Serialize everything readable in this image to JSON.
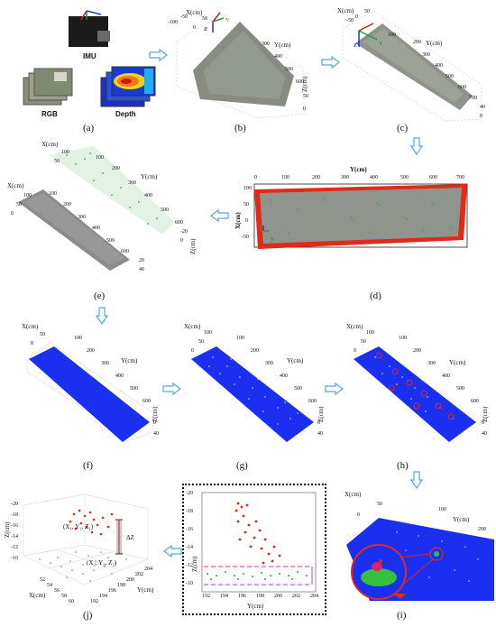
{
  "panels": {
    "a": {
      "caption": "(a)",
      "imu_label": "IMU",
      "rgb_label": "RGB",
      "depth_label": "Depth"
    },
    "b": {
      "caption": "(b)",
      "x_label": "X(cm)",
      "y_label": "Y(cm)",
      "z_label": "Z(cm)",
      "x_ticks": [
        "-100",
        "-50",
        "0",
        "50"
      ],
      "y_ticks": [
        "300",
        "400",
        "500",
        "600"
      ],
      "z_ticks": [
        "50",
        "0"
      ],
      "axis_y": "Y",
      "axis_z": "Z"
    },
    "c": {
      "caption": "(c)",
      "x_label": "X(cm)",
      "y_label": "Y(cm)",
      "z_label": "Z(cm)",
      "x_ticks": [
        "-50",
        "0",
        "50"
      ],
      "y_ticks": [
        "100",
        "200",
        "300",
        "400",
        "500",
        "600",
        "700"
      ],
      "z_ticks": [
        "40",
        "0"
      ],
      "axis_y": "Y",
      "axis_z": "Z"
    },
    "d": {
      "caption": "(d)",
      "x_label": "X(cm)",
      "y_label": "Y(cm)",
      "x_ticks": [
        "100",
        "50",
        "0",
        "-50"
      ],
      "y_ticks": [
        "0",
        "100",
        "200",
        "300",
        "400",
        "500",
        "600",
        "700"
      ],
      "axis_y": "y"
    },
    "e": {
      "caption": "(e)",
      "x_label": "X(cm)",
      "y_label": "Y(cm)",
      "z_label": "Z(cm)",
      "upper_x_ticks": [
        "100",
        "50"
      ],
      "upper_y_ticks": [
        "100",
        "200",
        "300",
        "400",
        "500",
        "600"
      ],
      "lower_x_ticks": [
        "100",
        "50",
        "0"
      ],
      "lower_y_ticks": [
        "100",
        "200",
        "300",
        "400",
        "500",
        "600"
      ],
      "z_ticks": [
        "-20",
        "0",
        "20",
        "40"
      ]
    },
    "f": {
      "caption": "(f)",
      "x_label": "X(cm)",
      "y_label": "Y(cm)",
      "z_label": "Z(cm)",
      "x_ticks": [
        "50",
        "0"
      ],
      "y_ticks": [
        "100",
        "200",
        "300",
        "400",
        "500",
        "600"
      ],
      "z_ticks": [
        "0",
        "40"
      ]
    },
    "g": {
      "caption": "(g)",
      "x_label": "X(cm)",
      "y_label": "Y(cm)",
      "z_label": "Z(cm)",
      "x_ticks": [
        "100",
        "50",
        "0"
      ],
      "y_ticks": [
        "100",
        "200",
        "300",
        "400",
        "500",
        "600"
      ],
      "z_ticks": [
        "0",
        "40"
      ]
    },
    "h": {
      "caption": "(h)",
      "x_label": "X(cm)",
      "y_label": "Y(cm)",
      "z_label": "Z(cm)",
      "x_ticks": [
        "100",
        "50",
        "0"
      ],
      "y_ticks": [
        "100",
        "200",
        "300",
        "400",
        "500",
        "600"
      ],
      "z_ticks": [
        "0",
        "40"
      ]
    },
    "i": {
      "caption": "(i)",
      "x_label": "X(cm)",
      "y_label": "Y(cm)",
      "x_ticks": [
        "50",
        "0"
      ],
      "y_ticks": [
        "100",
        "200"
      ]
    },
    "j": {
      "caption": "(j)",
      "x_label": "X(cm)",
      "y_label": "Y(cm)",
      "z_label": "Z(cm)",
      "x_ticks": [
        "52",
        "54",
        "56",
        "58",
        "60"
      ],
      "y_ticks": [
        "192",
        "194",
        "196",
        "198",
        "200",
        "202",
        "204"
      ],
      "z_ticks": [
        "-20",
        "-18",
        "-16",
        "-14",
        "-12",
        "-10"
      ],
      "point_label": "(X₁, Y₁, Z₁)",
      "point_label2": "(X₂, Y₂, Z₂)",
      "delta_label": "ΔZ"
    },
    "k": {
      "x_label": "Y(cm)",
      "y_label": "Z(cm)",
      "x_ticks": [
        "192",
        "194",
        "196",
        "198",
        "200",
        "202",
        "204"
      ],
      "y_ticks": [
        "-20",
        "-18",
        "-16",
        "-14",
        "-12",
        "-10"
      ]
    }
  },
  "colors": {
    "arrow": "#5aa7d8",
    "blue_cloud": "#1a2ff0",
    "gray_cloud": "#8c8c8c",
    "green_point": "#2fa84f",
    "red_point": "#e0201a",
    "magenta": "#c040c0"
  }
}
